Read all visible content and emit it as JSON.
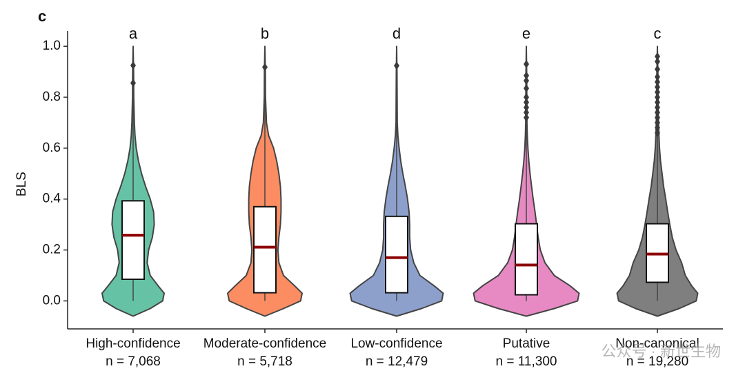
{
  "chart_data": {
    "type": "violin",
    "panel_label": "c",
    "y_label": "BLS",
    "categories": [
      "High-confidence",
      "Moderate-confidence",
      "Low-confidence",
      "Putative",
      "Non-canonical"
    ],
    "n": [
      7068,
      5718,
      12479,
      11300,
      19280
    ],
    "n_labels": [
      "n = 7,068",
      "n = 5,718",
      "n = 12,479",
      "n = 11,300",
      "n = 19,280"
    ],
    "annotations": [
      "a",
      "b",
      "d",
      "e",
      "c"
    ],
    "ylim": [
      -0.11,
      1.06
    ],
    "yticks": [
      {
        "value": 0,
        "label": "0.0"
      },
      0.2,
      0.4,
      0.6,
      0.8,
      {
        "value": 1,
        "label": "1.0"
      }
    ],
    "density_y": [
      -0.06,
      -0.03,
      0,
      0.03,
      0.06,
      0.1,
      0.15,
      0.2,
      0.25,
      0.3,
      0.35,
      0.4,
      0.45,
      0.5,
      0.55,
      0.6,
      0.65,
      0.7,
      0.8,
      0.9,
      1.0
    ],
    "series": [
      {
        "name": "High-confidence",
        "color": "#66c2a5",
        "density": [
          0,
          0.55,
          0.95,
          1.0,
          0.8,
          0.55,
          0.45,
          0.5,
          0.62,
          0.68,
          0.66,
          0.55,
          0.4,
          0.27,
          0.17,
          0.1,
          0.06,
          0.04,
          0.02,
          0.015,
          0
        ],
        "q1": 0.085,
        "median": 0.258,
        "q3": 0.393,
        "whisker": [
          0,
          0.84
        ],
        "outliers": [
          0.925,
          0.856
        ]
      },
      {
        "name": "Moderate-confidence",
        "color": "#fc8d62",
        "density": [
          0,
          0.6,
          1.15,
          1.2,
          0.95,
          0.6,
          0.45,
          0.42,
          0.45,
          0.5,
          0.52,
          0.52,
          0.5,
          0.45,
          0.38,
          0.28,
          0.12,
          0.05,
          0.02,
          0.015,
          0
        ],
        "q1": 0.032,
        "median": 0.211,
        "q3": 0.37,
        "whisker": [
          0,
          0.9
        ],
        "outliers": [
          0.918
        ]
      },
      {
        "name": "Low-confidence",
        "color": "#8da0cb",
        "density": [
          0,
          0.8,
          1.45,
          1.5,
          1.2,
          0.75,
          0.55,
          0.45,
          0.42,
          0.42,
          0.4,
          0.35,
          0.28,
          0.2,
          0.13,
          0.08,
          0.04,
          0.02,
          0.015,
          0.01,
          0
        ],
        "q1": 0.032,
        "median": 0.17,
        "q3": 0.332,
        "whisker": [
          0,
          0.9
        ],
        "outliers": [
          0.924
        ]
      },
      {
        "name": "Putative",
        "color": "#e78ac3",
        "density": [
          0,
          0.9,
          1.65,
          1.7,
          1.4,
          0.9,
          0.6,
          0.45,
          0.38,
          0.33,
          0.28,
          0.22,
          0.17,
          0.12,
          0.08,
          0.05,
          0.03,
          0.02,
          0.015,
          0.01,
          0
        ],
        "q1": 0.024,
        "median": 0.141,
        "q3": 0.303,
        "whisker": [
          0,
          0.71
        ],
        "outliers": [
          0.93,
          0.885,
          0.865,
          0.835,
          0.8,
          0.78,
          0.76,
          0.74,
          0.72
        ]
      },
      {
        "name": "Non-canonical",
        "color": "#7f7f7f",
        "density": [
          0,
          0.7,
          1.25,
          1.3,
          1.1,
          0.9,
          0.78,
          0.6,
          0.48,
          0.4,
          0.33,
          0.27,
          0.2,
          0.15,
          0.1,
          0.07,
          0.05,
          0.035,
          0.02,
          0.015,
          0
        ],
        "q1": 0.073,
        "median": 0.184,
        "q3": 0.303,
        "whisker": [
          0,
          0.65
        ],
        "outliers": [
          0.96,
          0.94,
          0.91,
          0.88,
          0.86,
          0.84,
          0.82,
          0.8,
          0.78,
          0.76,
          0.74,
          0.72,
          0.7,
          0.68,
          0.66
        ]
      }
    ],
    "watermark": "公众号 · 新世生物"
  }
}
